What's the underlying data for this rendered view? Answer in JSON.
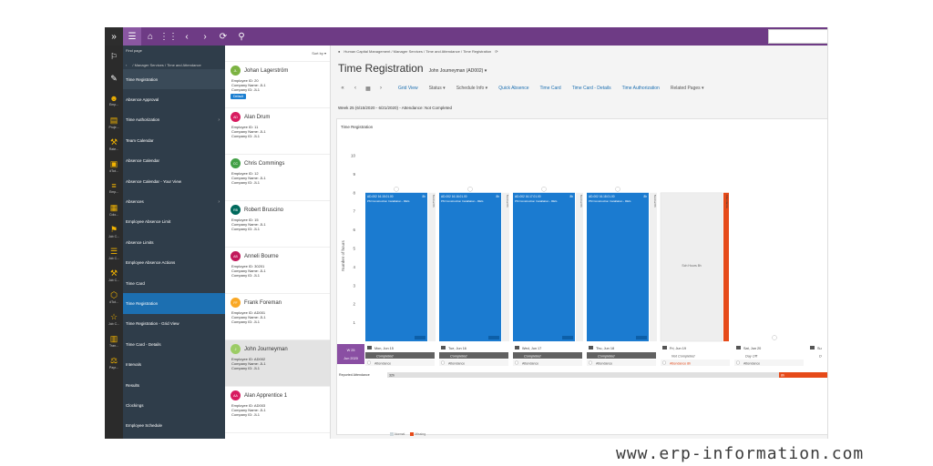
{
  "topbar": {
    "icons": [
      "expand-icon",
      "menu-icon",
      "home-icon",
      "apps-icon",
      "back-icon",
      "forward-icon",
      "refresh-icon",
      "search-icon"
    ]
  },
  "rail": {
    "icons": [
      {
        "name": "bookmark-icon",
        "glyph": "⚐",
        "cap": ""
      },
      {
        "name": "pencil-icon",
        "glyph": "✎",
        "cap": ""
      },
      {
        "name": "employee-icon",
        "glyph": "☻",
        "cap": "Emp..."
      },
      {
        "name": "project-icon",
        "glyph": "▤",
        "cap": "Proje..."
      },
      {
        "name": "rate-icon",
        "glyph": "⚒",
        "cap": "Rate..."
      },
      {
        "name": "folder-icon",
        "glyph": "▣",
        "cap": "#Tot..."
      },
      {
        "name": "list-icon",
        "glyph": "≡",
        "cap": "Emp..."
      },
      {
        "name": "calendar-icon",
        "glyph": "▦",
        "cap": "Colo..."
      },
      {
        "name": "job-icon",
        "glyph": "⚑",
        "cap": "Job C..."
      },
      {
        "name": "list2-icon",
        "glyph": "☰",
        "cap": "Job C..."
      },
      {
        "name": "tools-icon",
        "glyph": "⚒",
        "cap": "Job C..."
      },
      {
        "name": "box-icon",
        "glyph": "⬡",
        "cap": "#Tot..."
      },
      {
        "name": "star-icon",
        "glyph": "☆",
        "cap": "Job C..."
      },
      {
        "name": "pin-icon",
        "glyph": "▥",
        "cap": "Tran..."
      },
      {
        "name": "money-icon",
        "glyph": "⚖",
        "cap": "Payr..."
      }
    ]
  },
  "nav": {
    "header": "Find page",
    "crumb": "/ Manager Services / Time and Attendance",
    "items": [
      {
        "label": "Time Registration",
        "state": "current",
        "chev": ""
      },
      {
        "label": "Absence Approval",
        "state": "",
        "chev": ""
      },
      {
        "label": "Time Authorization",
        "state": "",
        "chev": "›"
      },
      {
        "label": "Team Calendar",
        "state": "",
        "chev": ""
      },
      {
        "label": "Absence Calendar",
        "state": "",
        "chev": ""
      },
      {
        "label": "Absence Calendar - Your View",
        "state": "",
        "chev": ""
      },
      {
        "label": "Absences",
        "state": "",
        "chev": "›"
      },
      {
        "label": "Employee Absence Limit",
        "state": "",
        "chev": ""
      },
      {
        "label": "Absence Limits",
        "state": "",
        "chev": ""
      },
      {
        "label": "Employee Absence Actions",
        "state": "",
        "chev": ""
      },
      {
        "label": "Time Card",
        "state": "",
        "chev": ""
      },
      {
        "label": "Time Registration",
        "state": "active",
        "chev": ""
      },
      {
        "label": "Time Registration - Grid View",
        "state": "",
        "chev": ""
      },
      {
        "label": "Time Card - Details",
        "state": "",
        "chev": ""
      },
      {
        "label": "Intervals",
        "state": "",
        "chev": ""
      },
      {
        "label": "Results",
        "state": "",
        "chev": ""
      },
      {
        "label": "Clockings",
        "state": "",
        "chev": ""
      },
      {
        "label": "Employee Schedule",
        "state": "",
        "chev": ""
      }
    ]
  },
  "employees": {
    "sort_label": "Sort by",
    "default_label": "Default",
    "id_label": "Employee ID:",
    "company_name_label": "Company Name:",
    "company_id_label": "Company ID:",
    "list": [
      {
        "initials": "JL",
        "name": "Johan Lagerström",
        "color": "#7cb342",
        "id": "20",
        "company_name": "JL1",
        "company_id": "JL1",
        "default": true,
        "selected": false
      },
      {
        "initials": "AD",
        "name": "Alan Drum",
        "color": "#d81b60",
        "id": "11",
        "company_name": "JL1",
        "company_id": "JL1",
        "default": false,
        "selected": false
      },
      {
        "initials": "CC",
        "name": "Chris Commings",
        "color": "#43a047",
        "id": "12",
        "company_name": "JL1",
        "company_id": "JL1",
        "default": false,
        "selected": false
      },
      {
        "initials": "RB",
        "name": "Robert Bruscino",
        "color": "#00695c",
        "id": "15",
        "company_name": "JL1",
        "company_id": "JL1",
        "default": false,
        "selected": false
      },
      {
        "initials": "AB",
        "name": "Anneli Bourne",
        "color": "#c2185b",
        "id": "30201",
        "company_name": "JL1",
        "company_id": "JL1",
        "default": false,
        "selected": false
      },
      {
        "initials": "FF",
        "name": "Frank Foreman",
        "color": "#f9a825",
        "id": "AD001",
        "company_name": "JL1",
        "company_id": "JL1",
        "default": false,
        "selected": false
      },
      {
        "initials": "J",
        "name": "John Journeyman",
        "color": "#9ccc65",
        "id": "AD002",
        "company_name": "JL1",
        "company_id": "JL1",
        "default": false,
        "selected": true
      },
      {
        "initials": "AA",
        "name": "Alan Apprentice 1",
        "color": "#d81b60",
        "id": "AD003",
        "company_name": "JL1",
        "company_id": "JL1",
        "default": false,
        "selected": false
      }
    ]
  },
  "main": {
    "breadcrumb": "Human Capital Management / Manager Services / Time and Attendance / Time Registration",
    "title": "Time Registration",
    "user": "John Journeyman (AD002)",
    "toolbar": [
      "Grid View",
      "Status",
      "Schedule Info",
      "Quick Absence",
      "Time Card",
      "Time Card - Details",
      "Time Authorization",
      "Related Pages"
    ],
    "week_line": "Week 25 (6/15/2020 - 6/21/2020) - Attendance: Not Completed",
    "panel_title": "Time Registration",
    "week_badge": "W 25",
    "month_badge": "Jun 2020",
    "reported_label": "Reported Attendance",
    "reported_value": "32h",
    "reported_missing": "8h",
    "legend_normal": "Normal",
    "legend_missing": "Missing"
  },
  "chart_data": {
    "type": "bar",
    "ylabel": "Number of hours",
    "ylim": [
      0,
      10
    ],
    "yticks": [
      0,
      1,
      2,
      3,
      4,
      5,
      6,
      7,
      8,
      9,
      10
    ],
    "days": [
      {
        "label": "Mon, Jun 15",
        "hours": 8,
        "status": "Completed",
        "footer": "Attendance",
        "bar_title": "AD-002 16.15.01.00",
        "bar_hours": "8h",
        "bar_sub": "PM Construction Installation - REG",
        "side": "Normal 8h"
      },
      {
        "label": "Tue, Jun 16",
        "hours": 8,
        "status": "Completed",
        "footer": "Attendance",
        "bar_title": "AD-002 16.16.01.00",
        "bar_hours": "8h",
        "bar_sub": "PM Construction Installation - REG",
        "side": "Normal 8h"
      },
      {
        "label": "Wed, Jun 17",
        "hours": 8,
        "status": "Completed",
        "footer": "Attendance",
        "bar_title": "AD-002 16.17.01.00",
        "bar_hours": "8h",
        "bar_sub": "PM Construction Installation - REG",
        "side": "Normal 8h"
      },
      {
        "label": "Thu, Jun 18",
        "hours": 8,
        "status": "Completed",
        "footer": "Attendance",
        "bar_title": "AD-002 16.18.01.00",
        "bar_hours": "8h",
        "bar_sub": "PM Construction Installation - REG",
        "side": "Normal 8h"
      },
      {
        "label": "Fri, Jun 19",
        "hours": 8,
        "status": "Not Completed",
        "footer": "Attendance 8h",
        "bar_title": "",
        "bar_hours": "",
        "bar_sub": "",
        "side": "Attendance",
        "empty_label": "Sch Hours 8h"
      },
      {
        "label": "Sat, Jun 20",
        "hours": 0,
        "status": "Day Off",
        "footer": "Attendance",
        "bar_title": "",
        "bar_hours": "",
        "bar_sub": "",
        "side": ""
      },
      {
        "label": "Su",
        "hours": 0,
        "status": "D",
        "footer": "",
        "bar_title": "",
        "bar_hours": "",
        "bar_sub": "",
        "side": ""
      }
    ],
    "colors": {
      "bar": "#1b7bd0",
      "missing": "#e64a19",
      "scheduled": "#eeeeee"
    }
  }
}
